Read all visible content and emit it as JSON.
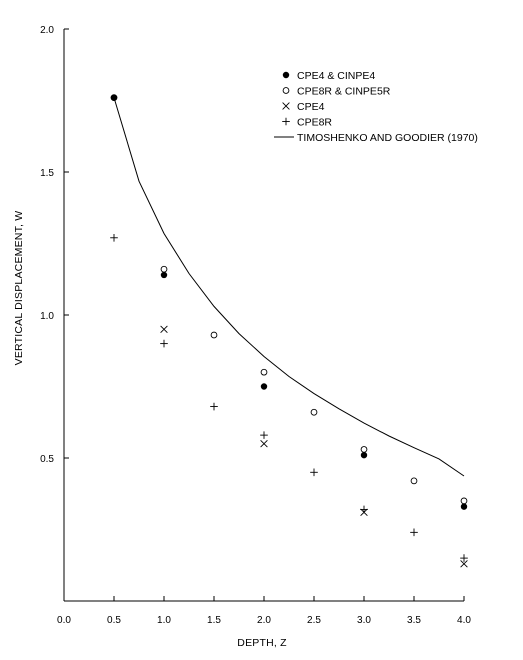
{
  "chart_data": {
    "type": "scatter",
    "title": "",
    "xlabel": "DEPTH, Z",
    "ylabel": "VERTICAL DISPLACEMENT, W",
    "xlim": [
      0.0,
      4.0
    ],
    "ylim": [
      0.0,
      2.0
    ],
    "x_ticks": [
      "0.0",
      "0.5",
      "1.0",
      "1.5",
      "2.0",
      "2.5",
      "3.0",
      "3.5",
      "4.0"
    ],
    "y_ticks": [
      "0.5",
      "1.0",
      "1.5",
      "2.0"
    ],
    "grid": false,
    "legend_position": "top-right",
    "series": [
      {
        "name": "CPE4 & CINPE4",
        "marker": "filled-circle",
        "points": [
          [
            0.5,
            1.76
          ],
          [
            1.0,
            1.14
          ],
          [
            2.0,
            0.75
          ],
          [
            3.0,
            0.51
          ],
          [
            4.0,
            0.33
          ]
        ]
      },
      {
        "name": "CPE8R & CINPE5R",
        "marker": "open-circle",
        "points": [
          [
            0.5,
            1.76
          ],
          [
            1.0,
            1.16
          ],
          [
            1.5,
            0.93
          ],
          [
            2.0,
            0.8
          ],
          [
            2.5,
            0.66
          ],
          [
            3.0,
            0.53
          ],
          [
            3.5,
            0.42
          ],
          [
            4.0,
            0.35
          ]
        ]
      },
      {
        "name": "CPE4",
        "marker": "x",
        "points": [
          [
            1.0,
            0.95
          ],
          [
            2.0,
            0.55
          ],
          [
            3.0,
            0.31
          ],
          [
            4.0,
            0.13
          ]
        ]
      },
      {
        "name": "CPE8R",
        "marker": "plus",
        "points": [
          [
            0.5,
            1.27
          ],
          [
            1.0,
            0.9
          ],
          [
            1.5,
            0.68
          ],
          [
            2.0,
            0.58
          ],
          [
            2.5,
            0.45
          ],
          [
            3.0,
            0.32
          ],
          [
            3.5,
            0.24
          ],
          [
            4.0,
            0.15
          ]
        ]
      },
      {
        "name": "TIMOSHENKO AND GOODIER (1970)",
        "marker": "line",
        "points": [
          [
            0.5,
            1.76
          ],
          [
            0.75,
            1.468
          ],
          [
            1.0,
            1.285
          ],
          [
            1.25,
            1.145
          ],
          [
            1.5,
            1.03
          ],
          [
            1.75,
            0.935
          ],
          [
            2.0,
            0.855
          ],
          [
            2.25,
            0.785
          ],
          [
            2.5,
            0.725
          ],
          [
            2.75,
            0.672
          ],
          [
            3.0,
            0.622
          ],
          [
            3.25,
            0.577
          ],
          [
            3.5,
            0.536
          ],
          [
            3.75,
            0.497
          ],
          [
            4.0,
            0.437
          ]
        ]
      }
    ]
  }
}
